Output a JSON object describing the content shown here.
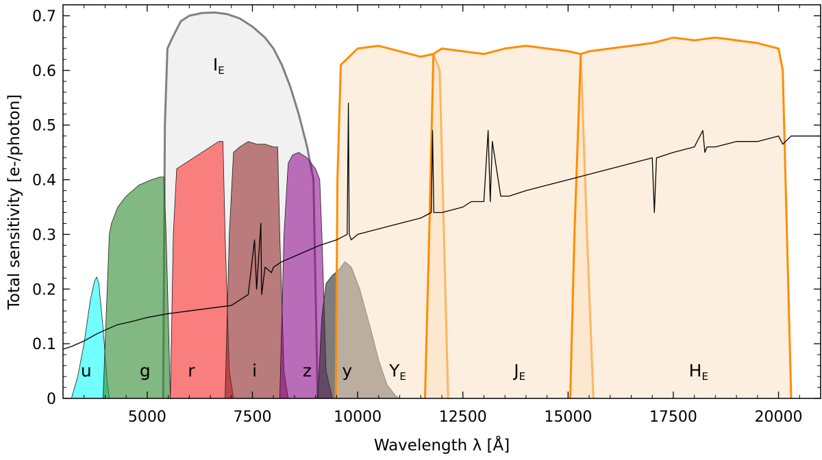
{
  "chart_data": {
    "type": "area",
    "title": "",
    "xlabel": "Wavelength λ [Å]",
    "ylabel": "Total sensitivity [e-/photon]",
    "xlim": [
      3000,
      21000
    ],
    "ylim": [
      0,
      0.72
    ],
    "xticks": [
      5000,
      7500,
      10000,
      12500,
      15000,
      17500,
      20000
    ],
    "xtick_labels": [
      "5000",
      "7500",
      "10000",
      "12500",
      "15000",
      "17500",
      "20000"
    ],
    "yticks": [
      0,
      0.1,
      0.2,
      0.3,
      0.4,
      0.5,
      0.6,
      0.7
    ],
    "ytick_labels": [
      "0",
      "0.1",
      "0.2",
      "0.3",
      "0.4",
      "0.5",
      "0.6",
      "0.7"
    ],
    "grid": false,
    "series": [
      {
        "name": "I_E",
        "label_main": "I",
        "label_sub": "E",
        "label_at": [
          6700,
          0.6
        ],
        "color": "#808080",
        "fill": "#ececec",
        "fill_opacity": 0.75,
        "stroke_width": 3,
        "x": [
          5380,
          5420,
          5480,
          5600,
          5800,
          6000,
          6300,
          6600,
          6900,
          7200,
          7500,
          7800,
          8000,
          8200,
          8400,
          8600,
          8800,
          8950,
          9050
        ],
        "y": [
          0,
          0.5,
          0.64,
          0.66,
          0.69,
          0.7,
          0.705,
          0.706,
          0.703,
          0.695,
          0.68,
          0.66,
          0.64,
          0.61,
          0.57,
          0.52,
          0.46,
          0.4,
          0
        ]
      },
      {
        "name": "u",
        "label_main": "u",
        "label_sub": "",
        "label_at": [
          3550,
          0.04
        ],
        "color": "#1a1a1a",
        "fill": "#00ffff",
        "fill_opacity": 0.55,
        "stroke_width": 0.8,
        "x": [
          3200,
          3350,
          3500,
          3650,
          3750,
          3800,
          3850,
          3950,
          4050,
          4100
        ],
        "y": [
          0,
          0.04,
          0.1,
          0.18,
          0.215,
          0.222,
          0.21,
          0.13,
          0.03,
          0
        ]
      },
      {
        "name": "g",
        "label_main": "g",
        "label_sub": "",
        "label_at": [
          4950,
          0.04
        ],
        "color": "#1a1a1a",
        "fill": "#2e8b2e",
        "fill_opacity": 0.6,
        "stroke_width": 0.8,
        "x": [
          3950,
          4050,
          4100,
          4150,
          4300,
          4500,
          4800,
          5100,
          5300,
          5400,
          5450,
          5550
        ],
        "y": [
          0,
          0.2,
          0.3,
          0.32,
          0.35,
          0.37,
          0.39,
          0.4,
          0.405,
          0.405,
          0.3,
          0
        ]
      },
      {
        "name": "r",
        "label_main": "r",
        "label_sub": "",
        "label_at": [
          6050,
          0.04
        ],
        "color": "#1a1a1a",
        "fill": "#ff2020",
        "fill_opacity": 0.55,
        "stroke_width": 0.8,
        "x": [
          5550,
          5620,
          5700,
          5900,
          6100,
          6300,
          6500,
          6700,
          6800,
          6850,
          6950,
          7050
        ],
        "y": [
          0,
          0.3,
          0.42,
          0.43,
          0.44,
          0.45,
          0.46,
          0.47,
          0.47,
          0.3,
          0.05,
          0
        ]
      },
      {
        "name": "i",
        "label_main": "i",
        "label_sub": "",
        "label_at": [
          7550,
          0.04
        ],
        "color": "#1a1a1a",
        "fill": "#8b1a1a",
        "fill_opacity": 0.55,
        "stroke_width": 0.8,
        "x": [
          6850,
          6950,
          7050,
          7200,
          7400,
          7600,
          7800,
          8000,
          8100,
          8150,
          8250,
          8350
        ],
        "y": [
          0,
          0.3,
          0.45,
          0.46,
          0.47,
          0.465,
          0.465,
          0.46,
          0.46,
          0.3,
          0.05,
          0
        ]
      },
      {
        "name": "z",
        "label_main": "z",
        "label_sub": "",
        "label_at": [
          8800,
          0.04
        ],
        "color": "#1a1a1a",
        "fill": "#8b008b",
        "fill_opacity": 0.55,
        "stroke_width": 0.8,
        "x": [
          8150,
          8250,
          8350,
          8450,
          8600,
          8800,
          9000,
          9100,
          9150,
          9250,
          9400
        ],
        "y": [
          0,
          0.3,
          0.43,
          0.445,
          0.45,
          0.44,
          0.42,
          0.4,
          0.3,
          0.05,
          0
        ]
      },
      {
        "name": "y",
        "label_main": "y",
        "label_sub": "",
        "label_at": [
          9750,
          0.04
        ],
        "color": "#1a1a1a",
        "fill": "#2d2d2d",
        "fill_opacity": 0.62,
        "stroke_width": 0.8,
        "x": [
          9050,
          9150,
          9250,
          9400,
          9550,
          9700,
          9850,
          10050,
          10300,
          10500,
          10700,
          10900,
          11000
        ],
        "y": [
          0,
          0.15,
          0.21,
          0.225,
          0.235,
          0.25,
          0.24,
          0.2,
          0.13,
          0.07,
          0.025,
          0.005,
          0
        ]
      },
      {
        "name": "Y_E",
        "label_main": "Y",
        "label_sub": "E",
        "label_at": [
          10950,
          0.04
        ],
        "color": "#ff8c00",
        "fill": "#fce0bf",
        "fill_opacity": 0.5,
        "stroke_width": 3,
        "x": [
          9480,
          9520,
          9600,
          10000,
          10500,
          11000,
          11500,
          11800,
          11950,
          12050,
          12150
        ],
        "y": [
          0,
          0.4,
          0.61,
          0.64,
          0.645,
          0.635,
          0.625,
          0.63,
          0.6,
          0.3,
          0
        ]
      },
      {
        "name": "J_E",
        "label_main": "J",
        "label_sub": "E",
        "label_at": [
          13850,
          0.04
        ],
        "color": "#ff8c00",
        "fill": "#fce0bf",
        "fill_opacity": 0.5,
        "stroke_width": 3,
        "x": [
          11600,
          11700,
          11800,
          12000,
          12500,
          13000,
          13500,
          14000,
          14500,
          15000,
          15300,
          15450,
          15600
        ],
        "y": [
          0,
          0.3,
          0.63,
          0.64,
          0.635,
          0.63,
          0.64,
          0.645,
          0.64,
          0.635,
          0.63,
          0.3,
          0
        ]
      },
      {
        "name": "H_E",
        "label_main": "H",
        "label_sub": "E",
        "label_at": [
          18100,
          0.04
        ],
        "color": "#ff8c00",
        "fill": "#fce0bf",
        "fill_opacity": 0.5,
        "stroke_width": 3,
        "x": [
          15050,
          15150,
          15300,
          15500,
          16000,
          16500,
          17000,
          17500,
          18000,
          18500,
          19000,
          19500,
          20000,
          20100,
          20200,
          20300
        ],
        "y": [
          0,
          0.3,
          0.63,
          0.635,
          0.64,
          0.645,
          0.65,
          0.66,
          0.655,
          0.66,
          0.655,
          0.65,
          0.64,
          0.6,
          0.3,
          0
        ]
      },
      {
        "name": "spectrum",
        "label_main": "",
        "label_sub": "",
        "label_at": null,
        "color": "#000000",
        "fill": "none",
        "fill_opacity": 0,
        "stroke_width": 1.3,
        "x": [
          3000,
          3200,
          3500,
          3800,
          4000,
          4300,
          4600,
          5000,
          5500,
          6000,
          6500,
          7000,
          7400,
          7550,
          7600,
          7700,
          7720,
          7800,
          7950,
          8000,
          8200,
          8500,
          8800,
          9100,
          9500,
          9750,
          9780,
          9800,
          9850,
          10000,
          10500,
          11000,
          11500,
          11750,
          11780,
          11810,
          12000,
          12500,
          12700,
          13000,
          13100,
          13150,
          13200,
          13400,
          13600,
          14000,
          14500,
          15000,
          15500,
          16000,
          16500,
          17000,
          17050,
          17100,
          17500,
          18000,
          18200,
          18250,
          18300,
          18500,
          19000,
          19500,
          20000,
          20100,
          20300,
          20500,
          21000
        ],
        "y": [
          0.09,
          0.095,
          0.105,
          0.118,
          0.125,
          0.135,
          0.14,
          0.148,
          0.155,
          0.16,
          0.165,
          0.17,
          0.19,
          0.29,
          0.2,
          0.32,
          0.19,
          0.24,
          0.23,
          0.24,
          0.25,
          0.26,
          0.27,
          0.28,
          0.29,
          0.3,
          0.54,
          0.3,
          0.29,
          0.3,
          0.31,
          0.32,
          0.33,
          0.34,
          0.49,
          0.34,
          0.34,
          0.35,
          0.36,
          0.36,
          0.49,
          0.36,
          0.47,
          0.37,
          0.37,
          0.38,
          0.39,
          0.4,
          0.41,
          0.42,
          0.43,
          0.44,
          0.34,
          0.44,
          0.45,
          0.46,
          0.49,
          0.45,
          0.46,
          0.46,
          0.47,
          0.47,
          0.48,
          0.465,
          0.48,
          0.48,
          0.48
        ]
      }
    ]
  }
}
